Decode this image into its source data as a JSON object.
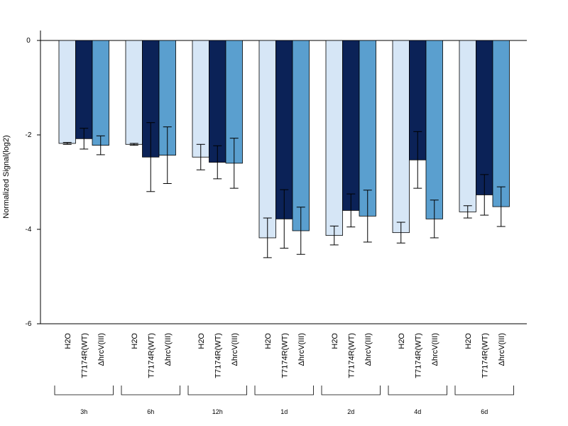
{
  "chart_data": {
    "type": "bar",
    "title": "",
    "xlabel": "",
    "ylabel": "Normalized Signal(log2)",
    "ylim": [
      -6,
      0
    ],
    "yticks": [
      "0",
      "-2",
      "-4",
      "-6"
    ],
    "grid": false,
    "categories": [
      "3h",
      "6h",
      "12h",
      "1d",
      "2d",
      "4d",
      "6d"
    ],
    "condition_labels": [
      "H2O",
      "T7174R(WT)",
      "ΔhrcV(III)"
    ],
    "colors": [
      "#d6e6f6",
      "#0b2257",
      "#5a9fcf"
    ],
    "series": [
      {
        "values": [
          -2.18,
          -2.2,
          -2.47,
          -4.18,
          -4.13,
          -4.07,
          -3.63
        ],
        "error": [
          0.02,
          0.02,
          0.27,
          0.42,
          0.2,
          0.22,
          0.13
        ]
      },
      {
        "values": [
          -2.08,
          -2.47,
          -2.58,
          -3.78,
          -3.6,
          -2.53,
          -3.27
        ],
        "error": [
          0.22,
          0.73,
          0.35,
          0.62,
          0.35,
          0.6,
          0.43
        ]
      },
      {
        "values": [
          -2.22,
          -2.43,
          -2.6,
          -4.03,
          -3.72,
          -3.78,
          -3.52
        ],
        "error": [
          0.2,
          0.6,
          0.53,
          0.5,
          0.55,
          0.4,
          0.42
        ]
      }
    ]
  }
}
